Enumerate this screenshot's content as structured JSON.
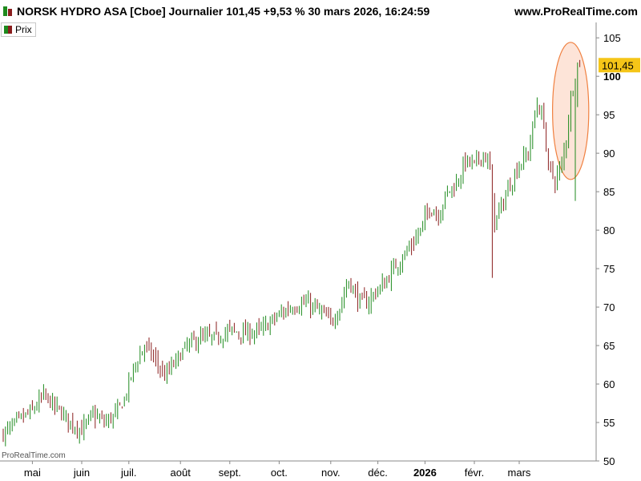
{
  "header": {
    "title": "NORSK HYDRO ASA [Cboe] Journalier 101,45 +9,53 % 30 mars 2026, 16:24:59",
    "site": "www.ProRealTime.com"
  },
  "legend": {
    "label": "Prix"
  },
  "watermark": "ProRealTime.com",
  "colors": {
    "up": "#1e8a1e",
    "down": "#8a1e1e",
    "price_badge": "#f5c518",
    "highlight_fill": "#fde4d8",
    "highlight_stroke": "#f08040",
    "axis": "#888888"
  },
  "chart_data": {
    "type": "ohlc",
    "title": "NORSK HYDRO ASA [Cboe] Journalier 101,45 +9,53 % 30 mars 2026, 16:24:59",
    "ylim": [
      50,
      107
    ],
    "y_ticks": [
      {
        "value": 50,
        "label": "50"
      },
      {
        "value": 55,
        "label": "55"
      },
      {
        "value": 60,
        "label": "60"
      },
      {
        "value": 65,
        "label": "65"
      },
      {
        "value": 70,
        "label": "70"
      },
      {
        "value": 75,
        "label": "75"
      },
      {
        "value": 80,
        "label": "80"
      },
      {
        "value": 85,
        "label": "85"
      },
      {
        "value": 90,
        "label": "90"
      },
      {
        "value": 95,
        "label": "95"
      },
      {
        "value": 100,
        "label": "100"
      },
      {
        "value": 105,
        "label": "105"
      }
    ],
    "x_ticks": [
      {
        "label": "mai",
        "bar": 13
      },
      {
        "label": "juin",
        "bar": 35
      },
      {
        "label": "juil.",
        "bar": 56
      },
      {
        "label": "août",
        "bar": 79
      },
      {
        "label": "sept.",
        "bar": 101
      },
      {
        "label": "oct.",
        "bar": 123
      },
      {
        "label": "nov.",
        "bar": 146
      },
      {
        "label": "déc.",
        "bar": 167
      },
      {
        "label": "2026",
        "bar": 188,
        "bold": true
      },
      {
        "label": "févr.",
        "bar": 210
      },
      {
        "label": "mars",
        "bar": 230
      }
    ],
    "last_price": {
      "value": 101.45,
      "label": "101,45"
    },
    "highlight": {
      "y_top": 104,
      "y_bottom": 87,
      "first_bar": 247,
      "last_bar": 256
    },
    "bars_count": 258,
    "anchors": [
      [
        0,
        53.5
      ],
      [
        8,
        55.5
      ],
      [
        13,
        56.5
      ],
      [
        18,
        58.5
      ],
      [
        25,
        56.5
      ],
      [
        30,
        55
      ],
      [
        35,
        54
      ],
      [
        40,
        56
      ],
      [
        45,
        55
      ],
      [
        50,
        56
      ],
      [
        54,
        58
      ],
      [
        58,
        62
      ],
      [
        63,
        65
      ],
      [
        68,
        63
      ],
      [
        72,
        61
      ],
      [
        77,
        63
      ],
      [
        82,
        65
      ],
      [
        88,
        66
      ],
      [
        95,
        66
      ],
      [
        101,
        67
      ],
      [
        108,
        66.5
      ],
      [
        115,
        67
      ],
      [
        121,
        68.5
      ],
      [
        128,
        70
      ],
      [
        135,
        70.5
      ],
      [
        141,
        69.5
      ],
      [
        146,
        68
      ],
      [
        150,
        70
      ],
      [
        154,
        73.5
      ],
      [
        158,
        71
      ],
      [
        162,
        70.5
      ],
      [
        166,
        72
      ],
      [
        170,
        73
      ],
      [
        174,
        75
      ],
      [
        178,
        76.5
      ],
      [
        182,
        78
      ],
      [
        186,
        80
      ],
      [
        190,
        83
      ],
      [
        194,
        82
      ],
      [
        198,
        85
      ],
      [
        202,
        86
      ],
      [
        206,
        89
      ],
      [
        210,
        88.5
      ],
      [
        214,
        90
      ],
      [
        217,
        88
      ],
      [
        219,
        81
      ],
      [
        222,
        83
      ],
      [
        226,
        86
      ],
      [
        230,
        88.5
      ],
      [
        234,
        90
      ],
      [
        238,
        96.5
      ],
      [
        241,
        94
      ],
      [
        243,
        88
      ],
      [
        246,
        86.5
      ],
      [
        249,
        88.5
      ],
      [
        251,
        92
      ],
      [
        253,
        97
      ],
      [
        256,
        101.45
      ]
    ]
  }
}
